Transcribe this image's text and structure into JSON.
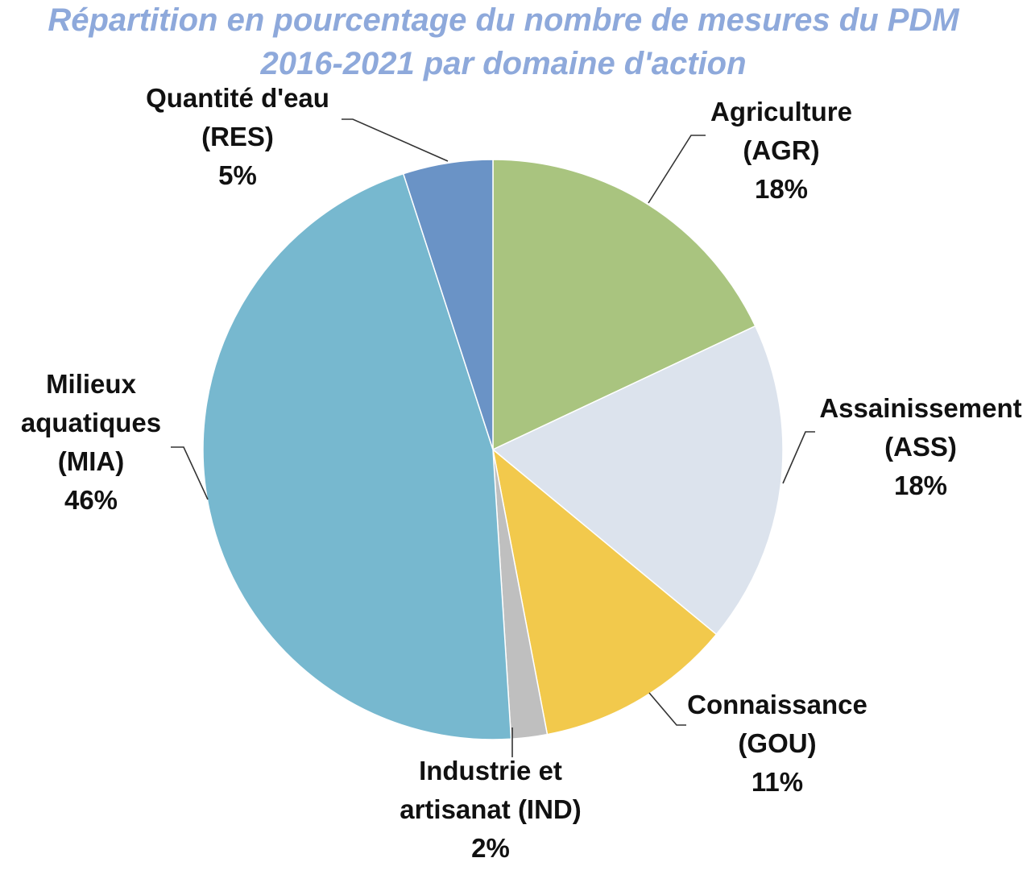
{
  "chart_data": {
    "type": "pie",
    "title": [
      "Répartition en pourcentage du nombre de mesures du PDM",
      "2016-2021 par domaine d'action"
    ],
    "slices": [
      {
        "key": "agr",
        "label": [
          "Agriculture",
          "(AGR)"
        ],
        "value": 18,
        "display": "18%",
        "color": "#A9C47F"
      },
      {
        "key": "ass",
        "label": [
          "Assainissement",
          "(ASS)"
        ],
        "value": 18,
        "display": "18%",
        "color": "#DCE3ED"
      },
      {
        "key": "gou",
        "label": [
          "Connaissance",
          "(GOU)"
        ],
        "value": 11,
        "display": "11%",
        "color": "#F2C94C"
      },
      {
        "key": "ind",
        "label": [
          "Industrie et",
          "artisanat (IND)"
        ],
        "value": 2,
        "display": "2%",
        "color": "#BFBFBF"
      },
      {
        "key": "mia",
        "label": [
          "Milieux",
          "aquatiques",
          "(MIA)"
        ],
        "value": 46,
        "display": "46%",
        "color": "#77B8CF"
      },
      {
        "key": "res",
        "label": [
          "Quantité d'eau",
          "(RES)"
        ],
        "value": 5,
        "display": "5%",
        "color": "#6A93C6"
      }
    ]
  }
}
